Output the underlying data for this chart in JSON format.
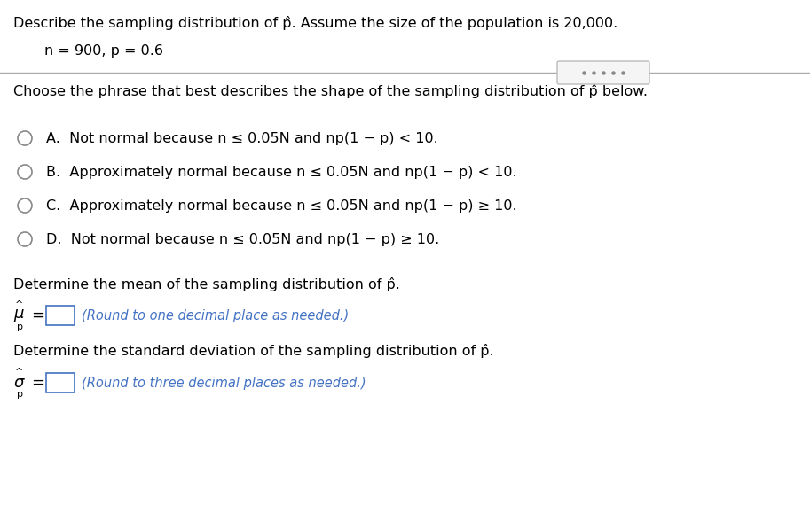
{
  "title_line1": "Describe the sampling distribution of p̂. Assume the size of the population is 20,000.",
  "param_line": "n = 900, p = 0.6",
  "section2_title": "Choose the phrase that best describes the shape of the sampling distribution of p̂ below.",
  "options": [
    "A.  Not normal because n ≤ 0.05N and np(1 − p) < 10.",
    "B.  Approximately normal because n ≤ 0.05N and np(1 − p) < 10.",
    "C.  Approximately normal because n ≤ 0.05N and np(1 − p) ≥ 10.",
    "D.  Not normal because n ≤ 0.05N and np(1 − p) ≥ 10."
  ],
  "mean_label": "Determine the mean of the sampling distribution of p̂.",
  "mean_round_note": "(Round to one decimal place as needed.)",
  "std_label": "Determine the standard deviation of the sampling distribution of p̂.",
  "std_round_note": "(Round to three decimal places as needed.)",
  "bg_color": "#ffffff",
  "text_color": "#000000",
  "blue_color": "#4472c4",
  "circle_edge_color": "#888888",
  "divider_color": "#aaaaaa",
  "scroll_box_color": "#f5f5f5",
  "scroll_dot_color": "#888888",
  "input_box_edge": "#4472c4"
}
